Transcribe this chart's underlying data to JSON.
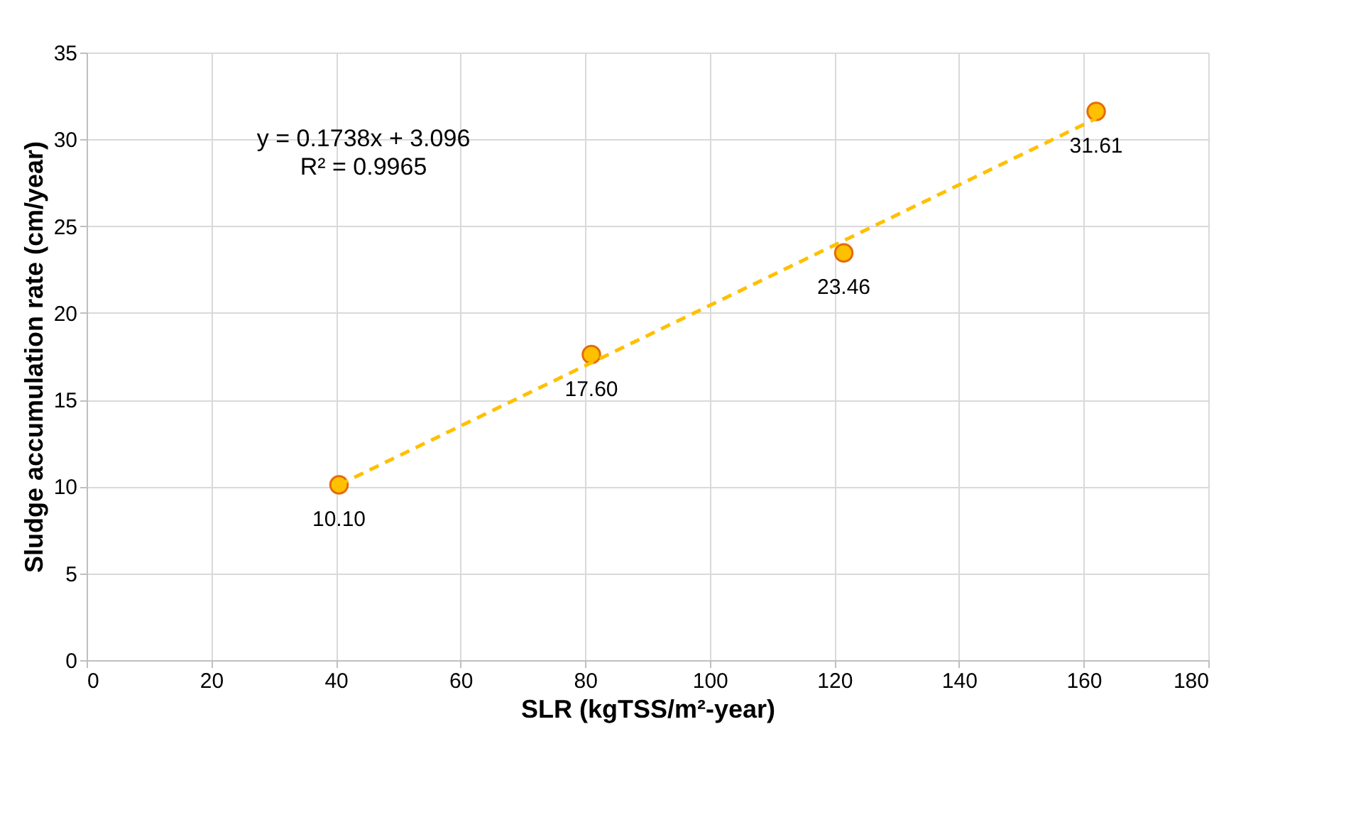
{
  "chart_data": {
    "type": "scatter",
    "xlabel": "SLR (kgTSS/m²-year)",
    "ylabel": "Sludge accumulation rate (cm/year)",
    "xlim": [
      0,
      180
    ],
    "xticks": [
      0,
      20,
      40,
      60,
      80,
      100,
      120,
      140,
      160,
      180
    ],
    "ylim": [
      0,
      35
    ],
    "yticks": [
      0,
      5,
      10,
      15,
      20,
      25,
      30,
      35
    ],
    "grid": true,
    "marker": "circle",
    "annotations": [
      "y = 0.1738x + 3.096",
      "R² = 0.9965"
    ],
    "series": [
      {
        "color": "#ffc000",
        "x": [
          40.5,
          81,
          121.5,
          162
        ],
        "values": [
          10.1,
          17.6,
          23.46,
          31.61
        ],
        "value_labels": [
          "10.10",
          "17.60",
          "23.46",
          "31.61"
        ]
      },
      {
        "type": "line",
        "color": "#ffc000",
        "line_style": "dashed",
        "marker": "none",
        "x": [
          40.5,
          162
        ],
        "values": [
          10.1,
          31.2
        ]
      }
    ]
  }
}
